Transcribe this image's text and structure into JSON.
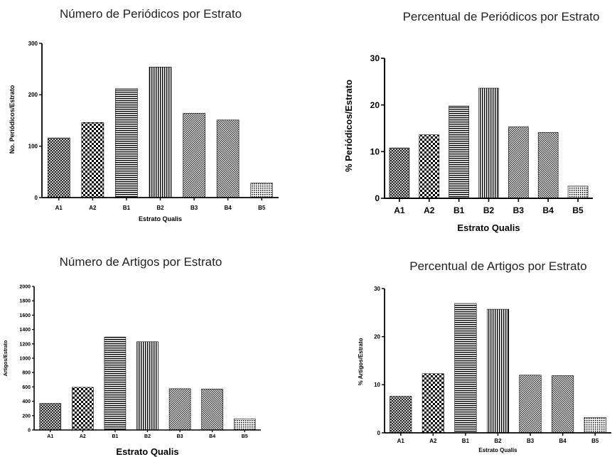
{
  "chart_data": [
    {
      "type": "bar",
      "title": "Número de Periódicos por Estrato",
      "xlabel": "Estrato Qualis",
      "ylabel": "No. Periódicos/Estrato",
      "categories": [
        "A1",
        "A2",
        "B1",
        "B2",
        "B3",
        "B4",
        "B5"
      ],
      "values": [
        116,
        146,
        212,
        254,
        164,
        151,
        28
      ],
      "ylim": [
        0,
        300
      ],
      "yticks": [
        0,
        100,
        200,
        300
      ],
      "grid": false
    },
    {
      "type": "bar",
      "title": "Percentual de Periódicos por Estrato",
      "xlabel": "Estrato Qualis",
      "ylabel": "% Periódicos/Estrato",
      "categories": [
        "A1",
        "A2",
        "B1",
        "B2",
        "B3",
        "B4",
        "B5"
      ],
      "values": [
        10.8,
        13.6,
        19.8,
        23.6,
        15.3,
        14.1,
        2.6
      ],
      "ylim": [
        0,
        30
      ],
      "yticks": [
        0,
        10,
        20,
        30
      ],
      "grid": false
    },
    {
      "type": "bar",
      "title": "Número de Artigos por Estrato",
      "xlabel": "Estrato Qualis",
      "ylabel": "Artigos/Estrato",
      "categories": [
        "A1",
        "A2",
        "B1",
        "B2",
        "B3",
        "B4",
        "B5"
      ],
      "values": [
        370,
        595,
        1295,
        1230,
        575,
        570,
        155
      ],
      "ylim": [
        0,
        2000
      ],
      "yticks": [
        0,
        200,
        400,
        600,
        800,
        1000,
        1200,
        1400,
        1600,
        1800,
        2000
      ],
      "grid": false
    },
    {
      "type": "bar",
      "title": "Percentual de Artigos por Estrato",
      "xlabel": "Estrato Qualis",
      "ylabel": "% Artigos/Estrato",
      "categories": [
        "A1",
        "A2",
        "B1",
        "B2",
        "B3",
        "B4",
        "B5"
      ],
      "values": [
        7.6,
        12.3,
        26.9,
        25.7,
        12.0,
        11.9,
        3.2
      ],
      "ylim": [
        0,
        30
      ],
      "yticks": [
        0,
        10,
        20,
        30
      ],
      "grid": false
    }
  ],
  "bar_patterns": [
    "diag-cross",
    "checker",
    "horizontal-lines",
    "vertical-lines",
    "diag-right",
    "diag-left",
    "dots"
  ]
}
